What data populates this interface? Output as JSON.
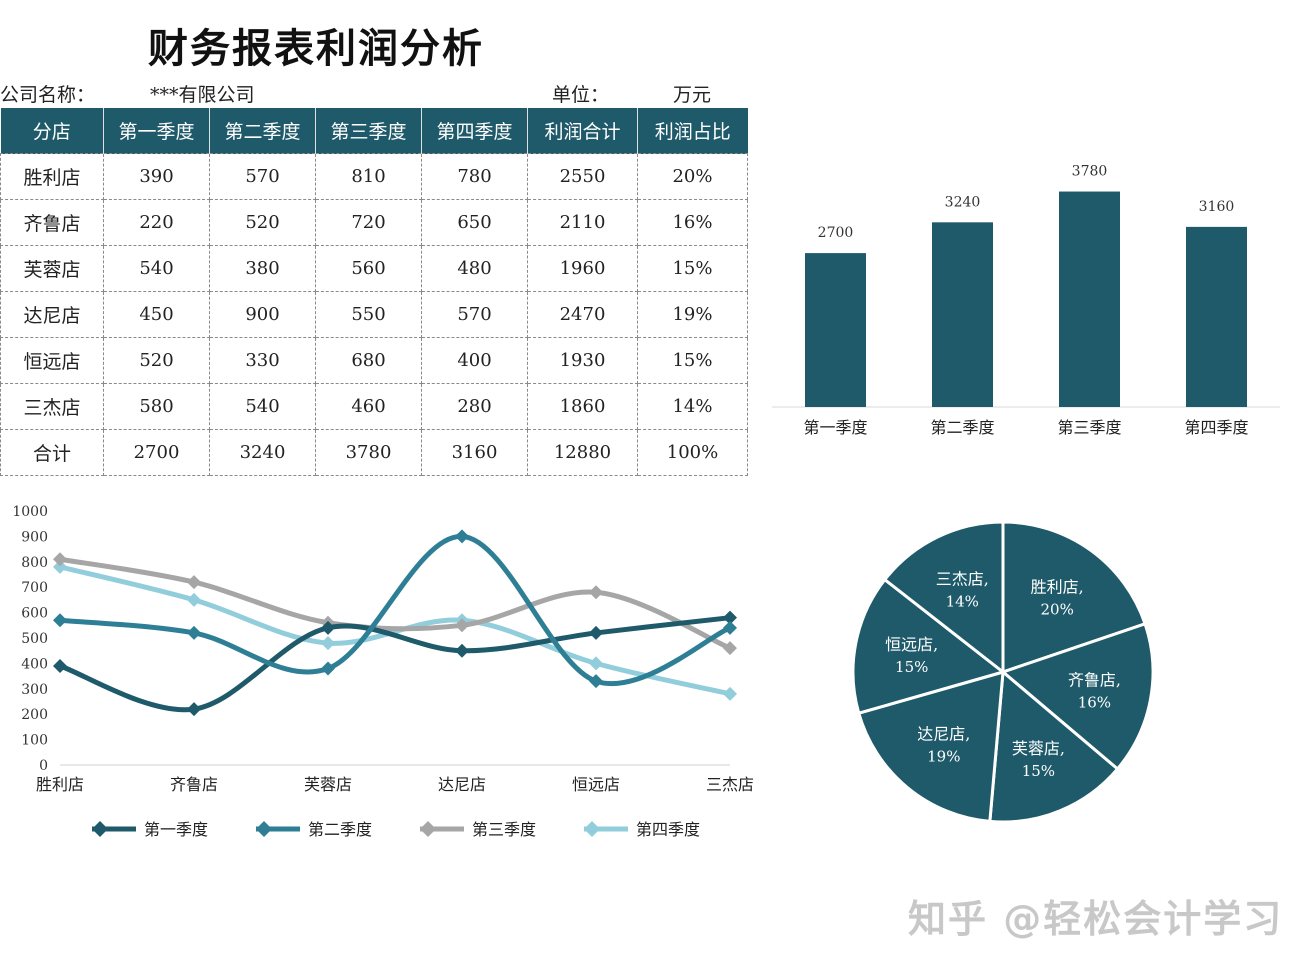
{
  "title": "财务报表利润分析",
  "company_label": "公司名称：",
  "company_value": "***有限公司",
  "unit_label": "单位：",
  "unit_value": "万元",
  "table": {
    "headers": [
      "分店",
      "第一季度",
      "第二季度",
      "第三季度",
      "第四季度",
      "利润合计",
      "利润占比"
    ],
    "rows": [
      [
        "胜利店",
        "390",
        "570",
        "810",
        "780",
        "2550",
        "20%"
      ],
      [
        "齐鲁店",
        "220",
        "520",
        "720",
        "650",
        "2110",
        "16%"
      ],
      [
        "芙蓉店",
        "540",
        "380",
        "560",
        "480",
        "1960",
        "15%"
      ],
      [
        "达尼店",
        "450",
        "900",
        "550",
        "570",
        "2470",
        "19%"
      ],
      [
        "恒远店",
        "520",
        "330",
        "680",
        "400",
        "1930",
        "15%"
      ],
      [
        "三杰店",
        "580",
        "540",
        "460",
        "280",
        "1860",
        "14%"
      ],
      [
        "合计",
        "2700",
        "3240",
        "3780",
        "3160",
        "12880",
        "100%"
      ]
    ]
  },
  "chart_data": [
    {
      "type": "bar",
      "categories": [
        "第一季度",
        "第二季度",
        "第三季度",
        "第四季度"
      ],
      "values": [
        2700,
        3240,
        3780,
        3160
      ],
      "ylim": [
        0,
        4000
      ],
      "grid": false,
      "color": "#1f5a6a"
    },
    {
      "type": "line",
      "categories": [
        "胜利店",
        "齐鲁店",
        "芙蓉店",
        "达尼店",
        "恒远店",
        "三杰店"
      ],
      "ylim": [
        0,
        1000
      ],
      "yticks": [
        "0",
        "100",
        "200",
        "300",
        "400",
        "500",
        "600",
        "700",
        "800",
        "900",
        "1000"
      ],
      "legend": "bottom",
      "smooth": true,
      "series": [
        {
          "name": "第一季度",
          "values": [
            390,
            220,
            540,
            450,
            520,
            580
          ],
          "color": "#1f5a6a"
        },
        {
          "name": "第二季度",
          "values": [
            570,
            520,
            380,
            900,
            330,
            540
          ],
          "color": "#2e7f96"
        },
        {
          "name": "第三季度",
          "values": [
            810,
            720,
            560,
            550,
            680,
            460
          ],
          "color": "#a6a6a6"
        },
        {
          "name": "第四季度",
          "values": [
            780,
            650,
            480,
            570,
            400,
            280
          ],
          "color": "#92cddc"
        }
      ]
    },
    {
      "type": "pie",
      "categories": [
        "胜利店",
        "齐鲁店",
        "芙蓉店",
        "达尼店",
        "恒远店",
        "三杰店"
      ],
      "values": [
        2550,
        2110,
        1960,
        2470,
        1930,
        1860
      ],
      "labels": [
        "20%",
        "16%",
        "15%",
        "19%",
        "15%",
        "14%"
      ],
      "color": "#1f5a6a"
    }
  ],
  "watermark": "知乎 @轻松会计学习"
}
